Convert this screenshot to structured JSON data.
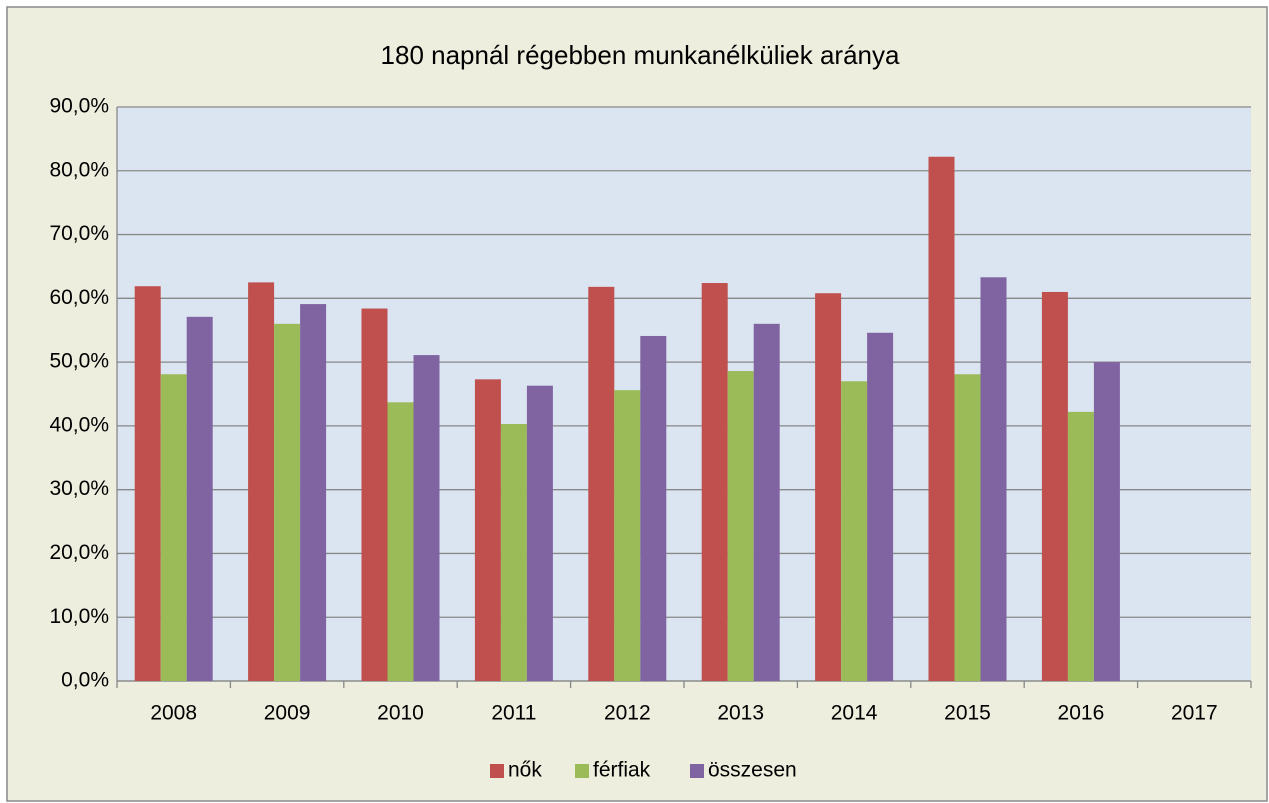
{
  "chart_data": {
    "type": "bar",
    "title": "180 napnál régebben munkanélküliek aránya",
    "categories": [
      "2008",
      "2009",
      "2010",
      "2011",
      "2012",
      "2013",
      "2014",
      "2015",
      "2016",
      "2017"
    ],
    "series": [
      {
        "name": "nők",
        "color": "#c0504d",
        "values": [
          61.9,
          62.5,
          58.4,
          47.3,
          61.8,
          62.4,
          60.8,
          82.2,
          61.0,
          null
        ]
      },
      {
        "name": "férfiak",
        "color": "#9bbb59",
        "values": [
          48.1,
          56.0,
          43.7,
          40.3,
          45.6,
          48.6,
          47.0,
          48.1,
          42.2,
          null
        ]
      },
      {
        "name": "összesen",
        "color": "#8064a2",
        "values": [
          57.1,
          59.1,
          51.1,
          46.3,
          54.1,
          56.0,
          54.6,
          63.3,
          50.0,
          null
        ]
      }
    ],
    "ylim": [
      0,
      90
    ],
    "yticks": [
      {
        "value": 0,
        "label": "0,0%"
      },
      {
        "value": 10,
        "label": "10,0%"
      },
      {
        "value": 20,
        "label": "20,0%"
      },
      {
        "value": 30,
        "label": "30,0%"
      },
      {
        "value": 40,
        "label": "40,0%"
      },
      {
        "value": 50,
        "label": "50,0%"
      },
      {
        "value": 60,
        "label": "60,0%"
      },
      {
        "value": 70,
        "label": "70,0%"
      },
      {
        "value": 80,
        "label": "80,0%"
      },
      {
        "value": 90,
        "label": "90,0%"
      }
    ],
    "grid": true,
    "legend": "bottom"
  }
}
